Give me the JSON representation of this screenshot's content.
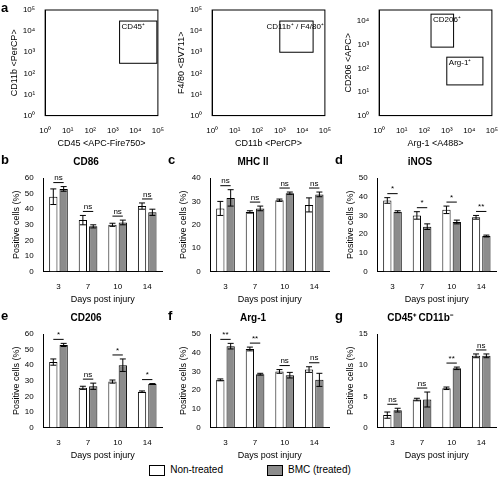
{
  "chart_data": [
    {
      "type": "scatter",
      "panel": "a",
      "xlabel": "CD45 <APC-Fire750>",
      "ylabel": "CD11b <PerCP>",
      "log": true,
      "grid": false,
      "xlim": [
        1,
        100000
      ],
      "ylim": [
        1,
        100000
      ],
      "xticks": [
        {
          "value": 1,
          "label": "10⁰"
        },
        {
          "value": 10,
          "label": "10¹"
        },
        {
          "value": 100,
          "label": "10²"
        },
        {
          "value": 1000,
          "label": "10³"
        },
        {
          "value": 10000,
          "label": "10⁴"
        },
        {
          "value": 100000,
          "label": "10⁵"
        }
      ],
      "yticks": [
        {
          "value": 1,
          "label": "10⁰"
        },
        {
          "value": 10,
          "label": "10¹"
        },
        {
          "value": 100,
          "label": "10²"
        },
        {
          "value": 1000,
          "label": "10³"
        },
        {
          "value": 10000,
          "label": "10⁴"
        },
        {
          "value": 100000,
          "label": "10⁵"
        }
      ],
      "gates": [
        {
          "label": "CD45⁺",
          "x": [
            2000,
            90000
          ],
          "y": [
            300,
            30000
          ]
        }
      ]
    },
    {
      "type": "scatter",
      "xlabel": "CD11b <PerCP>",
      "ylabel": "F4/80 <BV711>",
      "log": true,
      "grid": false,
      "xlim": [
        1,
        100000
      ],
      "ylim": [
        1,
        100000
      ],
      "xticks": [
        {
          "value": 1,
          "label": "10⁰"
        },
        {
          "value": 10,
          "label": "10¹"
        },
        {
          "value": 100,
          "label": "10²"
        },
        {
          "value": 1000,
          "label": "10³"
        },
        {
          "value": 10000,
          "label": "10⁴"
        },
        {
          "value": 100000,
          "label": "10⁵"
        }
      ],
      "yticks": [
        {
          "value": 1,
          "label": "10⁰"
        },
        {
          "value": 10,
          "label": "10¹"
        },
        {
          "value": 100,
          "label": "10²"
        },
        {
          "value": 1000,
          "label": "10³"
        },
        {
          "value": 10000,
          "label": "10⁴"
        },
        {
          "value": 100000,
          "label": "10⁵"
        }
      ],
      "gates": [
        {
          "label": "CD11b⁺ / F4/80⁺",
          "x": [
            1000,
            30000
          ],
          "y": [
            1000,
            30000
          ]
        }
      ]
    },
    {
      "type": "scatter",
      "xlabel": "Arg-1 <A488>",
      "ylabel": "CD206 <APC>",
      "log": true,
      "grid": false,
      "xlim": [
        1,
        100000
      ],
      "ylim": [
        1,
        30000
      ],
      "xticks": [
        {
          "value": 1,
          "label": "10⁰"
        },
        {
          "value": 10,
          "label": "10¹"
        },
        {
          "value": 100,
          "label": "10²"
        },
        {
          "value": 1000,
          "label": "10³"
        },
        {
          "value": 10000,
          "label": "10⁴"
        },
        {
          "value": 100000,
          "label": "10⁵"
        }
      ],
      "yticks": [
        {
          "value": 1,
          "label": "10⁰"
        },
        {
          "value": 10,
          "label": "10¹"
        },
        {
          "value": 100,
          "label": "10²"
        },
        {
          "value": 1000,
          "label": "10³"
        },
        {
          "value": 10000,
          "label": "10⁴"
        }
      ],
      "gates": [
        {
          "label": "CD206⁺",
          "x": [
            200,
            2000
          ],
          "y": [
            800,
            20000
          ]
        },
        {
          "label": "Arg-1⁺",
          "x": [
            1000,
            40000
          ],
          "y": [
            20,
            300
          ]
        }
      ]
    },
    {
      "type": "bar",
      "panel": "b",
      "title": "CD86",
      "xlabel": "Days post injury",
      "ylabel": "Positive cells (%)",
      "grid": false,
      "categories": [
        "3",
        "7",
        "10",
        "14"
      ],
      "ylim": [
        0,
        60
      ],
      "yticks": [
        0,
        10,
        20,
        30,
        40,
        50,
        60
      ],
      "series": [
        {
          "name": "Non-treated",
          "color": "#ffffff",
          "values": [
            48,
            33,
            30,
            42
          ],
          "errors": [
            5,
            3,
            1,
            2
          ]
        },
        {
          "name": "BMC (treated)",
          "color": "#8c8c8c",
          "values": [
            53,
            29,
            31.5,
            38
          ],
          "errors": [
            1.5,
            1,
            1.5,
            2
          ]
        }
      ],
      "significance": [
        "ns",
        "ns",
        "ns",
        "ns"
      ]
    },
    {
      "type": "bar",
      "panel": "c",
      "title": "MHC II",
      "xlabel": "Days post injury",
      "ylabel": "Positive cells (%)",
      "grid": false,
      "categories": [
        "3",
        "7",
        "10",
        "14"
      ],
      "ylim": [
        0,
        40
      ],
      "yticks": [
        0,
        10,
        20,
        30,
        40
      ],
      "series": [
        {
          "name": "Non-treated",
          "color": "#ffffff",
          "values": [
            27,
            25.5,
            30.5,
            28.5
          ],
          "errors": [
            3,
            0.5,
            0.5,
            3
          ]
        },
        {
          "name": "BMC (treated)",
          "color": "#8c8c8c",
          "values": [
            31.5,
            27,
            33.5,
            33
          ],
          "errors": [
            3.5,
            1,
            0.5,
            1
          ]
        }
      ],
      "significance": [
        "ns",
        "ns",
        "ns",
        "ns"
      ]
    },
    {
      "type": "bar",
      "panel": "d",
      "title": "iNOS",
      "xlabel": "Days post injury",
      "ylabel": "Positive cells (%)",
      "grid": false,
      "categories": [
        "3",
        "7",
        "10",
        "14"
      ],
      "ylim": [
        0,
        50
      ],
      "yticks": [
        0,
        10,
        20,
        30,
        40,
        50
      ],
      "series": [
        {
          "name": "Non-treated",
          "color": "#ffffff",
          "values": [
            38,
            30,
            33,
            29
          ],
          "errors": [
            1.5,
            2,
            2,
            1
          ]
        },
        {
          "name": "BMC (treated)",
          "color": "#8c8c8c",
          "values": [
            32,
            24,
            26.5,
            19
          ],
          "errors": [
            0.5,
            1.5,
            1,
            0.5
          ]
        }
      ],
      "significance": [
        "*",
        "*",
        "*",
        "**"
      ]
    },
    {
      "type": "bar",
      "panel": "e",
      "title": "CD206",
      "xlabel": "Days post injury",
      "ylabel": "Positive cells (%)",
      "grid": false,
      "categories": [
        "3",
        "7",
        "10",
        "14"
      ],
      "ylim": [
        0,
        60
      ],
      "yticks": [
        0,
        10,
        20,
        30,
        40,
        50,
        60
      ],
      "series": [
        {
          "name": "Non-treated",
          "color": "#ffffff",
          "values": [
            42,
            25.5,
            29.5,
            23
          ],
          "errors": [
            2,
            1,
            1,
            0.5
          ]
        },
        {
          "name": "BMC (treated)",
          "color": "#8c8c8c",
          "values": [
            53,
            26.5,
            40,
            28
          ],
          "errors": [
            1,
            2,
            4,
            0.2
          ]
        }
      ],
      "significance": [
        "*",
        "ns",
        "*",
        "*"
      ]
    },
    {
      "type": "bar",
      "panel": "f",
      "title": "Arg-1",
      "xlabel": "Days post injury",
      "ylabel": "Positive cells (%)",
      "grid": false,
      "categories": [
        "3",
        "7",
        "10",
        "14"
      ],
      "ylim": [
        0,
        50
      ],
      "yticks": [
        0,
        10,
        20,
        30,
        40,
        50
      ],
      "series": [
        {
          "name": "Non-treated",
          "color": "#ffffff",
          "values": [
            25.5,
            42,
            30,
            31
          ],
          "errors": [
            0.5,
            1,
            1,
            1.5
          ]
        },
        {
          "name": "BMC (treated)",
          "color": "#8c8c8c",
          "values": [
            43.5,
            28.5,
            28,
            25.5
          ],
          "errors": [
            1.5,
            0.5,
            1.5,
            3.5
          ]
        }
      ],
      "significance": [
        "**",
        "**",
        "ns",
        "ns"
      ]
    },
    {
      "type": "bar",
      "panel": "g",
      "title": "CD45⁺ CD11b⁻",
      "xlabel": "Days post injury",
      "ylabel": "Positive cells (%)",
      "grid": false,
      "categories": [
        "3",
        "7",
        "10",
        "14"
      ],
      "ylim": [
        0,
        15
      ],
      "yticks": [
        0,
        5,
        10,
        15
      ],
      "series": [
        {
          "name": "Non-treated",
          "color": "#ffffff",
          "values": [
            2,
            4.5,
            6.3,
            11.5
          ],
          "errors": [
            0.5,
            0.2,
            0.2,
            0.3
          ]
        },
        {
          "name": "BMC (treated)",
          "color": "#8c8c8c",
          "values": [
            2.8,
            4.5,
            9.5,
            11.5
          ],
          "errors": [
            0.3,
            1.2,
            0.2,
            0.3
          ]
        }
      ],
      "significance": [
        "ns",
        "ns",
        "**",
        "ns"
      ]
    }
  ]
}
